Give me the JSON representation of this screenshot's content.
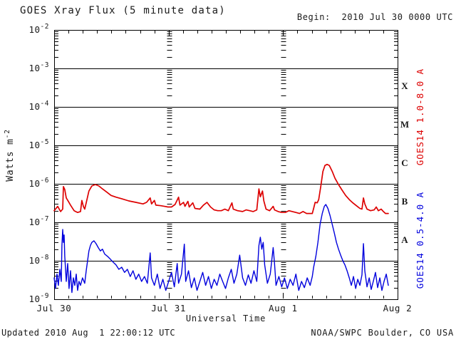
{
  "header": {
    "title": "GOES Xray Flux (5 minute data)",
    "begin": "Begin:  2010 Jul 30 0000 UTC"
  },
  "footer": {
    "updated": "Updated 2010 Aug  1 22:00:12 UTC",
    "source": "NOAA/SWPC Boulder, CO USA"
  },
  "chart_data": {
    "type": "line",
    "title": "GOES Xray Flux (5 minute data)",
    "xlabel": "Universal Time",
    "ylabel_base": "Watts m",
    "ylabel_exponent": "-2",
    "y_scale": "log",
    "ylim": [
      1e-09,
      0.01
    ],
    "y_tick_exponents": [
      -2,
      -3,
      -4,
      -5,
      -6,
      -7,
      -8,
      -9
    ],
    "x_range_days": [
      0,
      3
    ],
    "x_ticks": [
      "Jul 30",
      "Jul 31",
      "Aug 1",
      "Aug 2"
    ],
    "grid": {
      "h_lines_at_exponents": [
        -3,
        -4,
        -5,
        -6,
        -7,
        -8
      ],
      "v_ruler_days": [
        1,
        2
      ],
      "minor_time_tick_hours": 3
    },
    "flare_classes": [
      {
        "label": "X",
        "mid_exponent": -3.5
      },
      {
        "label": "M",
        "mid_exponent": -4.5
      },
      {
        "label": "C",
        "mid_exponent": -5.5
      },
      {
        "label": "B",
        "mid_exponent": -6.5
      },
      {
        "label": "A",
        "mid_exponent": -7.5
      }
    ],
    "series": [
      {
        "name": "GOES14 1.0-8.0 A",
        "color": "#dd0000",
        "points": [
          [
            0.0,
            2e-07
          ],
          [
            0.031,
            2.6e-07
          ],
          [
            0.056,
            1.9e-07
          ],
          [
            0.075,
            2.2e-07
          ],
          [
            0.081,
            8.5e-07
          ],
          [
            0.093,
            7.1e-07
          ],
          [
            0.106,
            4.3e-07
          ],
          [
            0.124,
            3.5e-07
          ],
          [
            0.143,
            2.8e-07
          ],
          [
            0.174,
            2e-07
          ],
          [
            0.205,
            1.8e-07
          ],
          [
            0.23,
            1.9e-07
          ],
          [
            0.242,
            3.7e-07
          ],
          [
            0.255,
            2.6e-07
          ],
          [
            0.267,
            2.2e-07
          ],
          [
            0.28,
            3.2e-07
          ],
          [
            0.304,
            6.5e-07
          ],
          [
            0.329,
            8.8e-07
          ],
          [
            0.36,
            9.6e-07
          ],
          [
            0.391,
            8.8e-07
          ],
          [
            0.422,
            7.4e-07
          ],
          [
            0.453,
            6.3e-07
          ],
          [
            0.497,
            5e-07
          ],
          [
            0.54,
            4.5e-07
          ],
          [
            0.59,
            4.1e-07
          ],
          [
            0.652,
            3.6e-07
          ],
          [
            0.714,
            3.3e-07
          ],
          [
            0.776,
            3e-07
          ],
          [
            0.807,
            3.3e-07
          ],
          [
            0.839,
            4.3e-07
          ],
          [
            0.851,
            3e-07
          ],
          [
            0.876,
            3.7e-07
          ],
          [
            0.888,
            2.8e-07
          ],
          [
            0.932,
            2.7e-07
          ],
          [
            0.963,
            2.6e-07
          ],
          [
            0.994,
            2.5e-07
          ],
          [
            1.025,
            2.5e-07
          ],
          [
            1.056,
            2.9e-07
          ],
          [
            1.087,
            4.5e-07
          ],
          [
            1.099,
            2.8e-07
          ],
          [
            1.13,
            3.3e-07
          ],
          [
            1.143,
            2.6e-07
          ],
          [
            1.168,
            3.5e-07
          ],
          [
            1.18,
            2.5e-07
          ],
          [
            1.211,
            3.2e-07
          ],
          [
            1.23,
            2.3e-07
          ],
          [
            1.273,
            2.2e-07
          ],
          [
            1.304,
            2.8e-07
          ],
          [
            1.335,
            3.3e-07
          ],
          [
            1.366,
            2.5e-07
          ],
          [
            1.398,
            2.1e-07
          ],
          [
            1.429,
            2e-07
          ],
          [
            1.46,
            2e-07
          ],
          [
            1.491,
            2.2e-07
          ],
          [
            1.522,
            2e-07
          ],
          [
            1.553,
            3.2e-07
          ],
          [
            1.565,
            2.2e-07
          ],
          [
            1.602,
            2e-07
          ],
          [
            1.646,
            1.9e-07
          ],
          [
            1.677,
            2.1e-07
          ],
          [
            1.708,
            2e-07
          ],
          [
            1.739,
            1.9e-07
          ],
          [
            1.77,
            2.1e-07
          ],
          [
            1.789,
            7.4e-07
          ],
          [
            1.801,
            4.6e-07
          ],
          [
            1.82,
            6.5e-07
          ],
          [
            1.832,
            3.6e-07
          ],
          [
            1.851,
            2.2e-07
          ],
          [
            1.882,
            2e-07
          ],
          [
            1.913,
            2.6e-07
          ],
          [
            1.925,
            2.1e-07
          ],
          [
            1.957,
            1.9e-07
          ],
          [
            1.988,
            1.8e-07
          ],
          [
            2.019,
            1.8e-07
          ],
          [
            2.05,
            2e-07
          ],
          [
            2.081,
            1.9e-07
          ],
          [
            2.112,
            1.8e-07
          ],
          [
            2.143,
            1.7e-07
          ],
          [
            2.174,
            1.9e-07
          ],
          [
            2.205,
            1.7e-07
          ],
          [
            2.236,
            1.7e-07
          ],
          [
            2.255,
            1.7e-07
          ],
          [
            2.267,
            2.3e-07
          ],
          [
            2.28,
            3.3e-07
          ],
          [
            2.298,
            3.2e-07
          ],
          [
            2.311,
            3.9e-07
          ],
          [
            2.329,
            8.5e-07
          ],
          [
            2.348,
            2.1e-06
          ],
          [
            2.366,
            3e-06
          ],
          [
            2.385,
            3.2e-06
          ],
          [
            2.404,
            3e-06
          ],
          [
            2.429,
            2.1e-06
          ],
          [
            2.453,
            1.4e-06
          ],
          [
            2.484,
            9.6e-07
          ],
          [
            2.516,
            6.8e-07
          ],
          [
            2.546,
            5e-07
          ],
          [
            2.578,
            3.9e-07
          ],
          [
            2.609,
            3.2e-07
          ],
          [
            2.64,
            2.7e-07
          ],
          [
            2.671,
            2.3e-07
          ],
          [
            2.689,
            2.2e-07
          ],
          [
            2.702,
            4.3e-07
          ],
          [
            2.714,
            3e-07
          ],
          [
            2.733,
            2.2e-07
          ],
          [
            2.764,
            2e-07
          ],
          [
            2.795,
            2.1e-07
          ],
          [
            2.814,
            2.5e-07
          ],
          [
            2.832,
            2e-07
          ],
          [
            2.857,
            2.2e-07
          ],
          [
            2.876,
            1.9e-07
          ],
          [
            2.894,
            1.7e-07
          ],
          [
            2.919,
            1.7e-07
          ]
        ]
      },
      {
        "name": "GOES14 0.5-4.0 A",
        "color": "#0000dd",
        "points": [
          [
            0.0,
            3.6e-09
          ],
          [
            0.012,
            1.9e-09
          ],
          [
            0.025,
            4.5e-09
          ],
          [
            0.037,
            2.3e-09
          ],
          [
            0.05,
            6e-09
          ],
          [
            0.062,
            2.9e-09
          ],
          [
            0.068,
            2.5e-08
          ],
          [
            0.075,
            6.5e-08
          ],
          [
            0.081,
            3e-08
          ],
          [
            0.087,
            4.7e-08
          ],
          [
            0.093,
            1.3e-08
          ],
          [
            0.106,
            2.9e-09
          ],
          [
            0.118,
            8.5e-09
          ],
          [
            0.13,
            1.9e-09
          ],
          [
            0.143,
            5.5e-09
          ],
          [
            0.155,
            1.5e-09
          ],
          [
            0.168,
            3.6e-09
          ],
          [
            0.18,
            2.3e-09
          ],
          [
            0.193,
            4.5e-09
          ],
          [
            0.205,
            1.7e-09
          ],
          [
            0.217,
            2.9e-09
          ],
          [
            0.23,
            2.3e-09
          ],
          [
            0.248,
            3.6e-09
          ],
          [
            0.267,
            2.6e-09
          ],
          [
            0.28,
            5.5e-09
          ],
          [
            0.292,
            1e-08
          ],
          [
            0.304,
            1.8e-08
          ],
          [
            0.317,
            2.5e-08
          ],
          [
            0.329,
            3e-08
          ],
          [
            0.348,
            3.3e-08
          ],
          [
            0.366,
            2.8e-08
          ],
          [
            0.385,
            2.2e-08
          ],
          [
            0.404,
            1.8e-08
          ],
          [
            0.422,
            2e-08
          ],
          [
            0.441,
            1.5e-08
          ],
          [
            0.466,
            1.3e-08
          ],
          [
            0.491,
            1.1e-08
          ],
          [
            0.516,
            9.2e-09
          ],
          [
            0.54,
            7.8e-09
          ],
          [
            0.565,
            6e-09
          ],
          [
            0.59,
            6.8e-09
          ],
          [
            0.615,
            5e-09
          ],
          [
            0.64,
            6e-09
          ],
          [
            0.665,
            3.9e-09
          ],
          [
            0.689,
            5.5e-09
          ],
          [
            0.714,
            3.3e-09
          ],
          [
            0.739,
            4.5e-09
          ],
          [
            0.764,
            2.9e-09
          ],
          [
            0.789,
            3.9e-09
          ],
          [
            0.814,
            2.6e-09
          ],
          [
            0.839,
            1.6e-08
          ],
          [
            0.851,
            3.6e-09
          ],
          [
            0.876,
            2.3e-09
          ],
          [
            0.901,
            4.5e-09
          ],
          [
            0.925,
            1.9e-09
          ],
          [
            0.95,
            3.3e-09
          ],
          [
            0.975,
            1.7e-09
          ],
          [
            1.0,
            2.9e-09
          ],
          [
            1.025,
            5e-09
          ],
          [
            1.05,
            2.1e-09
          ],
          [
            1.075,
            8.5e-09
          ],
          [
            1.087,
            2.6e-09
          ],
          [
            1.112,
            4.5e-09
          ],
          [
            1.137,
            2.7e-08
          ],
          [
            1.149,
            2.9e-09
          ],
          [
            1.174,
            5.5e-09
          ],
          [
            1.199,
            2e-09
          ],
          [
            1.224,
            3.6e-09
          ],
          [
            1.248,
            1.7e-09
          ],
          [
            1.273,
            2.9e-09
          ],
          [
            1.298,
            5e-09
          ],
          [
            1.323,
            2.3e-09
          ],
          [
            1.348,
            3.9e-09
          ],
          [
            1.373,
            1.9e-09
          ],
          [
            1.398,
            3.3e-09
          ],
          [
            1.422,
            2.3e-09
          ],
          [
            1.447,
            4.5e-09
          ],
          [
            1.472,
            2.9e-09
          ],
          [
            1.497,
            1.9e-09
          ],
          [
            1.522,
            3.6e-09
          ],
          [
            1.547,
            6e-09
          ],
          [
            1.571,
            2.6e-09
          ],
          [
            1.596,
            4.5e-09
          ],
          [
            1.621,
            1.4e-08
          ],
          [
            1.646,
            3.6e-09
          ],
          [
            1.671,
            2.3e-09
          ],
          [
            1.696,
            4.3e-09
          ],
          [
            1.72,
            2.6e-09
          ],
          [
            1.745,
            5.5e-09
          ],
          [
            1.77,
            2.9e-09
          ],
          [
            1.789,
            2.5e-08
          ],
          [
            1.801,
            4.1e-08
          ],
          [
            1.814,
            2e-08
          ],
          [
            1.826,
            3e-08
          ],
          [
            1.839,
            7.8e-09
          ],
          [
            1.863,
            2.6e-09
          ],
          [
            1.888,
            4.5e-09
          ],
          [
            1.913,
            2.2e-08
          ],
          [
            1.925,
            8.5e-09
          ],
          [
            1.938,
            2.3e-09
          ],
          [
            1.963,
            3.9e-09
          ],
          [
            1.988,
            2.1e-09
          ],
          [
            2.012,
            3.6e-09
          ],
          [
            2.037,
            1.9e-09
          ],
          [
            2.062,
            3.3e-09
          ],
          [
            2.087,
            2.3e-09
          ],
          [
            2.112,
            4.5e-09
          ],
          [
            2.137,
            1.7e-09
          ],
          [
            2.161,
            2.9e-09
          ],
          [
            2.186,
            2e-09
          ],
          [
            2.211,
            3.6e-09
          ],
          [
            2.236,
            2.3e-09
          ],
          [
            2.255,
            3.9e-09
          ],
          [
            2.267,
            6.8e-09
          ],
          [
            2.286,
            1.3e-08
          ],
          [
            2.304,
            3e-08
          ],
          [
            2.323,
            8.8e-08
          ],
          [
            2.342,
            1.7e-07
          ],
          [
            2.36,
            2.6e-07
          ],
          [
            2.373,
            2.9e-07
          ],
          [
            2.391,
            2.3e-07
          ],
          [
            2.41,
            1.5e-07
          ],
          [
            2.429,
            8.8e-08
          ],
          [
            2.447,
            5.3e-08
          ],
          [
            2.466,
            3e-08
          ],
          [
            2.484,
            2e-08
          ],
          [
            2.503,
            1.4e-08
          ],
          [
            2.522,
            1e-08
          ],
          [
            2.54,
            7.8e-09
          ],
          [
            2.559,
            5.5e-09
          ],
          [
            2.578,
            3.6e-09
          ],
          [
            2.596,
            2.3e-09
          ],
          [
            2.615,
            3.9e-09
          ],
          [
            2.634,
            1.9e-09
          ],
          [
            2.652,
            3.3e-09
          ],
          [
            2.671,
            2.3e-09
          ],
          [
            2.689,
            4.3e-09
          ],
          [
            2.702,
            2.8e-08
          ],
          [
            2.714,
            5.5e-09
          ],
          [
            2.733,
            2.1e-09
          ],
          [
            2.752,
            3.6e-09
          ],
          [
            2.77,
            1.8e-09
          ],
          [
            2.789,
            3e-09
          ],
          [
            2.807,
            5e-09
          ],
          [
            2.826,
            2e-09
          ],
          [
            2.845,
            3.6e-09
          ],
          [
            2.863,
            1.7e-09
          ],
          [
            2.882,
            2.9e-09
          ],
          [
            2.901,
            4.5e-09
          ],
          [
            2.919,
            2.3e-09
          ]
        ]
      }
    ]
  },
  "colors": {
    "axis": "#000000",
    "text": "#1a1a1a",
    "long_channel": "#dd0000",
    "short_channel": "#0000dd"
  }
}
